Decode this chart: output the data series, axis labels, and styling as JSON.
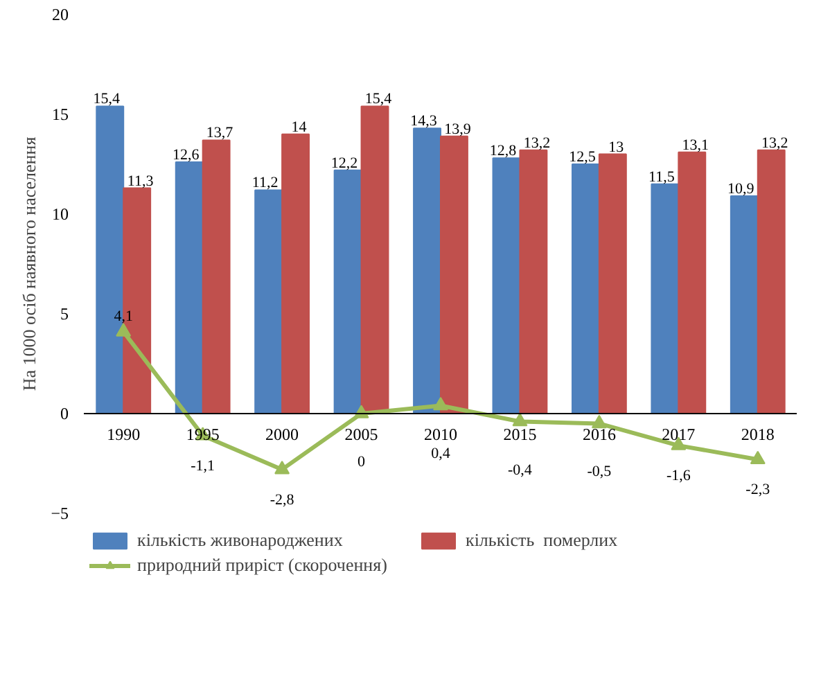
{
  "chart_data": {
    "type": "bar",
    "ylabel": "На 1000 осіб наявного населення",
    "categories": [
      "1990",
      "1995",
      "2000",
      "2005",
      "2010",
      "2015",
      "2016",
      "2017",
      "2018"
    ],
    "series": [
      {
        "name": "кількість живонароджених",
        "color": "#4f81bd",
        "values": [
          15.4,
          12.6,
          11.2,
          12.2,
          14.3,
          12.8,
          12.5,
          11.5,
          10.9
        ],
        "value_labels": [
          "15,4",
          "12,6",
          "11,2",
          "12,2",
          "14,3",
          "12,8",
          "12,5",
          "11,5",
          "10,9"
        ]
      },
      {
        "name": "кількість  померлих",
        "color": "#c0504d",
        "values": [
          11.3,
          13.7,
          14,
          15.4,
          13.9,
          13.2,
          13,
          13.1,
          13.2
        ],
        "value_labels": [
          "11,3",
          "13,7",
          "14",
          "15,4",
          "13,9",
          "13,2",
          "13",
          "13,1",
          "13,2"
        ]
      },
      {
        "name": "природний приріст (скорочення)",
        "type": "line",
        "color": "#9bbb59",
        "marker": "triangle",
        "values": [
          4.1,
          -1.1,
          -2.8,
          0,
          0.4,
          -0.4,
          -0.5,
          -1.6,
          -2.3
        ],
        "value_labels": [
          "4,1",
          "-1,1",
          "-2,8",
          "0",
          "0,4",
          "-0,4",
          "-0,5",
          "-1,6",
          "-2,3"
        ]
      }
    ],
    "ylim": [
      -5,
      20
    ],
    "yticks": [
      -5,
      0,
      5,
      10,
      15,
      20
    ],
    "grid": false,
    "legend": "bottom"
  }
}
